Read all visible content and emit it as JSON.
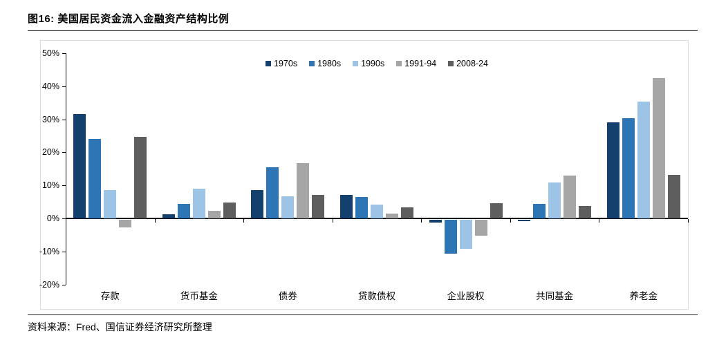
{
  "title": "图16: 美国居民资金流入金融资产结构比例",
  "source": "资料来源：Fred、国信证券经济研究所整理",
  "chart_data": {
    "type": "bar",
    "title": "美国居民资金流入金融资产结构比例",
    "categories": [
      "存款",
      "货币基金",
      "债券",
      "贷款债权",
      "企业股权",
      "共同基金",
      "养老金"
    ],
    "series": [
      {
        "name": "1970s",
        "color": "#14406E",
        "values": [
          31.5,
          1.2,
          8.5,
          7.2,
          -1.0,
          -0.5,
          29.0
        ]
      },
      {
        "name": "1980s",
        "color": "#2E75B6",
        "values": [
          24.0,
          4.4,
          15.5,
          6.5,
          -10.3,
          4.4,
          30.3
        ]
      },
      {
        "name": "1990s",
        "color": "#9DC3E6",
        "values": [
          8.5,
          8.9,
          6.7,
          4.1,
          -8.9,
          10.8,
          35.3
        ]
      },
      {
        "name": "1991-94",
        "color": "#A6A6A6",
        "values": [
          -2.4,
          2.4,
          16.7,
          1.4,
          -4.9,
          13.0,
          42.4
        ]
      },
      {
        "name": "2008-24",
        "color": "#5E5E5E",
        "values": [
          24.6,
          4.8,
          7.1,
          3.4,
          4.5,
          3.8,
          13.1
        ]
      }
    ],
    "ylim": [
      -20,
      50
    ],
    "y_tick_step": 10,
    "y_tick_labels": [
      "50%",
      "40%",
      "30%",
      "20%",
      "10%",
      "0%",
      "-10%",
      "-20%"
    ],
    "grid": "off",
    "legend_position": "top-center",
    "xlabel": "",
    "ylabel": ""
  }
}
